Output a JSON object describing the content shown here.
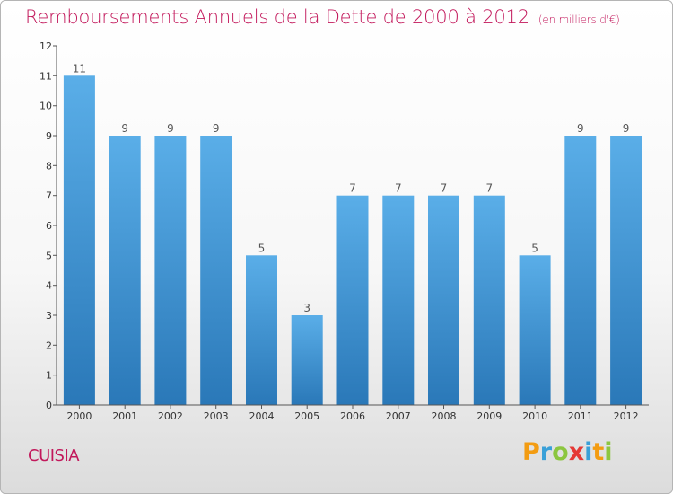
{
  "header": {
    "title": "Remboursements Annuels de la Dette de 2000 à 2012",
    "unit": "(en milliers d'€)"
  },
  "footer": {
    "commune": "CUISIA",
    "logo_letters": [
      {
        "char": "P",
        "color": "#f39c12"
      },
      {
        "char": "r",
        "color": "#3aa0d8"
      },
      {
        "char": "o",
        "color": "#8cc63f"
      },
      {
        "char": "x",
        "color": "#e53935"
      },
      {
        "char": "i",
        "color": "#3aa0d8"
      },
      {
        "char": "t",
        "color": "#f39c12"
      },
      {
        "char": "i",
        "color": "#8cc63f"
      }
    ]
  },
  "chart_data": {
    "type": "bar",
    "title": "Remboursements Annuels de la Dette de 2000 à 2012",
    "subtitle": "(en milliers d'€)",
    "xlabel": "",
    "ylabel": "",
    "categories": [
      "2000",
      "2001",
      "2002",
      "2003",
      "2004",
      "2005",
      "2006",
      "2007",
      "2008",
      "2009",
      "2010",
      "2011",
      "2012"
    ],
    "values": [
      11,
      9,
      9,
      9,
      5,
      3,
      7,
      7,
      7,
      7,
      5,
      9,
      9
    ],
    "data_labels": [
      "11",
      "9",
      "9",
      "9",
      "5",
      "3",
      "7",
      "7",
      "7",
      "7",
      "5",
      "9",
      "9"
    ],
    "ylim": [
      0,
      12
    ],
    "yticks": [
      "0",
      "1",
      "2",
      "3",
      "4",
      "5",
      "6",
      "7",
      "8",
      "9",
      "10",
      "11",
      "12"
    ],
    "grid": false,
    "legend": "none",
    "bar_color_top": "#5aaee8",
    "bar_color_bottom": "#2a78b8"
  }
}
